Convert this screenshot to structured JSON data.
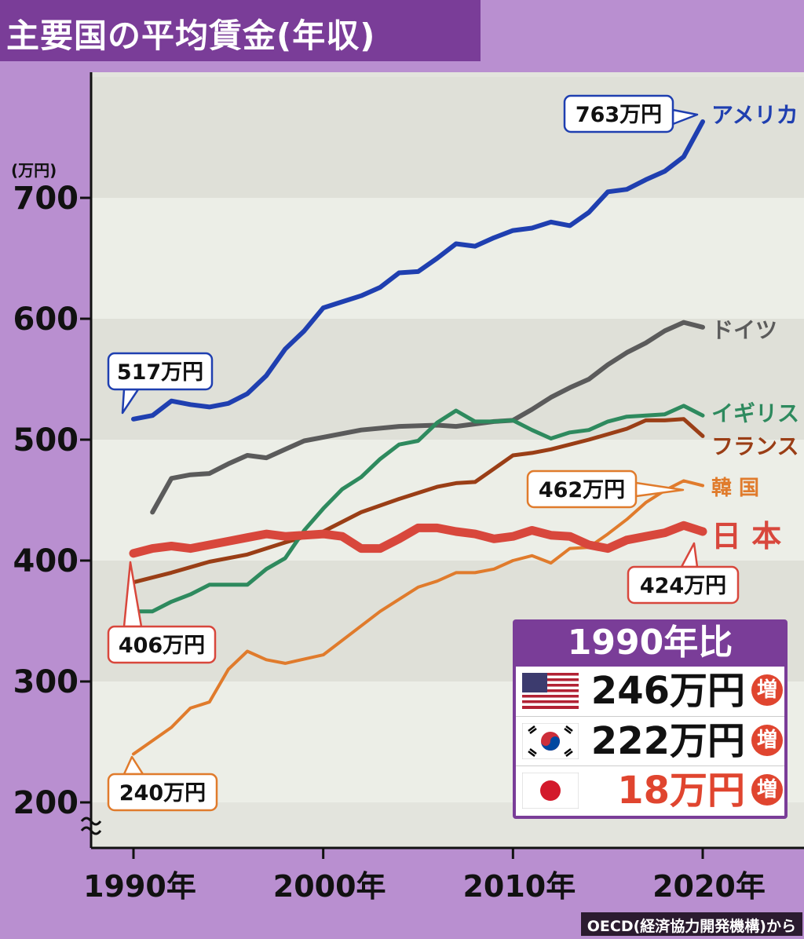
{
  "title": "主要国の平均賃金(年収)",
  "source": "OECD(経済協力開発機構)から",
  "chart_data": {
    "type": "line",
    "ylabel": "(万円)",
    "ylim": [
      200,
      790
    ],
    "xlim": [
      1987.5,
      2025
    ],
    "y_ticks": [
      200,
      300,
      400,
      500,
      600,
      700
    ],
    "x_ticks": [
      {
        "value": 1990,
        "label": "1990年"
      },
      {
        "value": 2000,
        "label": "2000年"
      },
      {
        "value": 2010,
        "label": "2010年"
      },
      {
        "value": 2020,
        "label": "2020年"
      }
    ],
    "series": [
      {
        "name": "アメリカ",
        "color": "#1f3fb0",
        "width": 6,
        "x": [
          1990,
          1991,
          1992,
          1993,
          1994,
          1995,
          1996,
          1997,
          1998,
          1999,
          2000,
          2001,
          2002,
          2003,
          2004,
          2005,
          2006,
          2007,
          2008,
          2009,
          2010,
          2011,
          2012,
          2013,
          2014,
          2015,
          2016,
          2017,
          2018,
          2019,
          2020
        ],
        "values": [
          517,
          520,
          532,
          529,
          527,
          530,
          538,
          553,
          575,
          590,
          609,
          614,
          619,
          626,
          638,
          639,
          650,
          662,
          660,
          667,
          673,
          675,
          680,
          677,
          688,
          705,
          707,
          715,
          722,
          734,
          763
        ]
      },
      {
        "name": "ドイツ",
        "color": "#5b5b5b",
        "width": 6,
        "x": [
          1991,
          1992,
          1993,
          1994,
          1995,
          1996,
          1997,
          1998,
          1999,
          2000,
          2002,
          2004,
          2006,
          2007,
          2008,
          2009,
          2010,
          2011,
          2012,
          2013,
          2014,
          2015,
          2016,
          2017,
          2018,
          2019,
          2020
        ],
        "values": [
          440,
          468,
          471,
          472,
          480,
          487,
          485,
          492,
          499,
          502,
          508,
          511,
          512,
          511,
          513,
          515,
          516,
          525,
          535,
          543,
          550,
          562,
          572,
          580,
          590,
          597,
          593
        ]
      },
      {
        "name": "イギリス",
        "color": "#2e8a5e",
        "width": 5,
        "x": [
          1990,
          1991,
          1992,
          1993,
          1994,
          1995,
          1996,
          1997,
          1998,
          1999,
          2000,
          2001,
          2002,
          2003,
          2004,
          2005,
          2006,
          2007,
          2008,
          2009,
          2010,
          2011,
          2012,
          2013,
          2014,
          2015,
          2016,
          2017,
          2018,
          2019,
          2020
        ],
        "values": [
          358,
          358,
          366,
          372,
          380,
          380,
          380,
          393,
          402,
          425,
          443,
          459,
          469,
          484,
          496,
          499,
          514,
          524,
          515,
          515,
          516,
          508,
          501,
          506,
          508,
          515,
          519,
          520,
          521,
          528,
          520
        ]
      },
      {
        "name": "フランス",
        "color": "#9a3e16",
        "width": 5,
        "x": [
          1990,
          1992,
          1994,
          1996,
          1998,
          2000,
          2002,
          2004,
          2006,
          2007,
          2008,
          2009,
          2010,
          2011,
          2012,
          2014,
          2016,
          2017,
          2018,
          2019,
          2020
        ],
        "values": [
          382,
          390,
          399,
          405,
          415,
          424,
          440,
          451,
          461,
          464,
          465,
          476,
          487,
          489,
          492,
          500,
          509,
          516,
          516,
          517,
          503
        ]
      },
      {
        "name": "韓 国",
        "color": "#e07b2c",
        "width": 4,
        "x": [
          1990,
          1992,
          1993,
          1994,
          1995,
          1996,
          1997,
          1998,
          2000,
          2002,
          2003,
          2004,
          2005,
          2006,
          2007,
          2008,
          2009,
          2010,
          2011,
          2012,
          2013,
          2014,
          2015,
          2016,
          2017,
          2018,
          2019,
          2020
        ],
        "values": [
          240,
          262,
          278,
          283,
          310,
          325,
          318,
          315,
          322,
          346,
          358,
          368,
          378,
          383,
          390,
          390,
          393,
          400,
          404,
          398,
          410,
          411,
          422,
          434,
          448,
          458,
          466,
          462
        ]
      },
      {
        "name": "日 本",
        "color": "#d8473c",
        "width": 11,
        "x": [
          1990,
          1991,
          1992,
          1993,
          1994,
          1995,
          1996,
          1997,
          1998,
          1999,
          2000,
          2001,
          2002,
          2003,
          2004,
          2005,
          2006,
          2007,
          2008,
          2009,
          2010,
          2011,
          2012,
          2013,
          2014,
          2015,
          2016,
          2017,
          2018,
          2019,
          2020
        ],
        "values": [
          406,
          410,
          412,
          410,
          413,
          416,
          419,
          422,
          420,
          421,
          422,
          420,
          410,
          410,
          418,
          427,
          427,
          424,
          422,
          418,
          420,
          425,
          421,
          420,
          413,
          410,
          417,
          420,
          423,
          429,
          424
        ]
      }
    ],
    "callouts": [
      {
        "label": "517万円",
        "color": "#1f3fb0"
      },
      {
        "label": "763万円",
        "color": "#1f3fb0"
      },
      {
        "label": "462万円",
        "color": "#e07b2c"
      },
      {
        "label": "424万円",
        "color": "#d8473c"
      },
      {
        "label": "406万円",
        "color": "#d8473c"
      },
      {
        "label": "240万円",
        "color": "#e07b2c"
      }
    ]
  },
  "comparison": {
    "title": "1990年比",
    "rows": [
      {
        "flag": "usa-flag",
        "value": "246万円",
        "badge": "増",
        "value_color": "#111111"
      },
      {
        "flag": "korea-flag",
        "value": "222万円",
        "badge": "増",
        "value_color": "#111111"
      },
      {
        "flag": "japan-flag",
        "value": "18万円",
        "badge": "増",
        "value_color": "#e0452f"
      }
    ]
  }
}
